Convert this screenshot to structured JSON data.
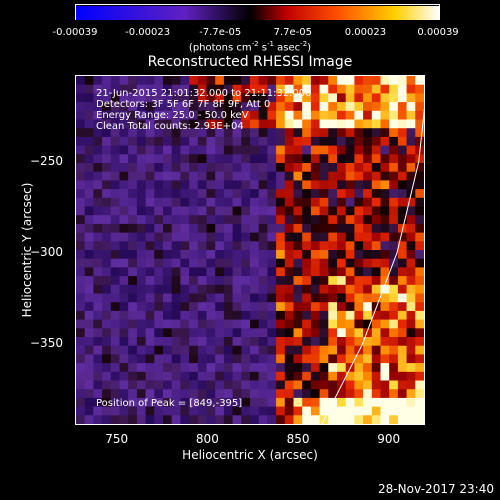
{
  "chart_data": {
    "type": "heatmap",
    "title": "Reconstructed RHESSI Image",
    "xlabel": "Heliocentric X (arcsec)",
    "ylabel": "Heliocentric Y (arcsec)",
    "xlim": [
      727,
      920
    ],
    "ylim": [
      -395,
      -203
    ],
    "xticks": [
      750,
      800,
      850,
      900
    ],
    "yticks": [
      -250,
      -300,
      -350
    ],
    "colorbar": {
      "ticks": [
        "-0.00039",
        "-0.00023",
        "-7.7e-05",
        "7.7e-05",
        "0.00023",
        "0.00039"
      ],
      "range": [
        -0.00039,
        0.00039
      ],
      "units_main": "(photons cm",
      "units_exp1": "-2",
      "units_mid": " s",
      "units_exp2": "-1",
      "units_end": " asec",
      "units_exp3": "-2",
      "units_close": ")"
    },
    "annotations": [
      "21-Jun-2015 21:01:32.000 to 21:11:32.000",
      "Detectors: 3F 5F 6F 7F 8F 9F, Att 0",
      "Energy Range: 25.0 - 50.0 keV",
      "Clean     Total counts: 2.93E+04"
    ],
    "peak_text": "Position of Peak = [849,-395]",
    "limb": [
      [
        862,
        -395
      ],
      [
        885,
        -350
      ],
      [
        904,
        -300
      ],
      [
        916,
        -250
      ],
      [
        920,
        -213
      ]
    ]
  },
  "timestamp": "28-Nov-2017 23:40"
}
